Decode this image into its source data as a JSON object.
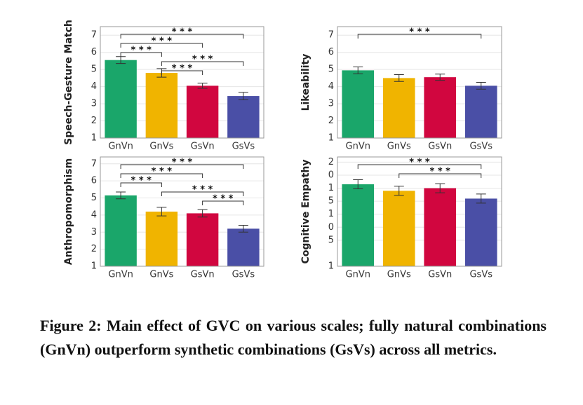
{
  "chart_data": [
    {
      "type": "bar",
      "ylabel": "Speech-Gesture Match",
      "categories": [
        "GnVn",
        "GnVs",
        "GsVn",
        "GsVs"
      ],
      "values": [
        5.55,
        4.8,
        4.05,
        3.45
      ],
      "errors": [
        0.2,
        0.25,
        0.15,
        0.22
      ],
      "colors": [
        "#1aa66a",
        "#f0b400",
        "#d1063f",
        "#4a4fa6"
      ],
      "ylim": [
        1,
        7.5
      ],
      "yticks": [
        1,
        2,
        3,
        4,
        5,
        6,
        7
      ],
      "grid": true,
      "brackets": [
        {
          "from": 0,
          "to": 3,
          "label": "* * *"
        },
        {
          "from": 0,
          "to": 2,
          "label": "* * *"
        },
        {
          "from": 0,
          "to": 1,
          "label": "* * *"
        },
        {
          "from": 1,
          "to": 3,
          "label": "* * *"
        },
        {
          "from": 1,
          "to": 2,
          "label": "* * *"
        }
      ]
    },
    {
      "type": "bar",
      "ylabel": "Likeability",
      "categories": [
        "GnVn",
        "GnVs",
        "GsVn",
        "GsVs"
      ],
      "values": [
        4.95,
        4.5,
        4.55,
        4.05
      ],
      "errors": [
        0.2,
        0.2,
        0.18,
        0.2
      ],
      "colors": [
        "#1aa66a",
        "#f0b400",
        "#d1063f",
        "#4a4fa6"
      ],
      "ylim": [
        1,
        7.5
      ],
      "yticks": [
        1,
        2,
        3,
        4,
        5,
        6,
        7
      ],
      "grid": true,
      "brackets": [
        {
          "from": 0,
          "to": 3,
          "label": "* * *"
        }
      ]
    },
    {
      "type": "bar",
      "ylabel": "Anthropomorphism",
      "categories": [
        "GnVn",
        "GnVs",
        "GsVn",
        "GsVs"
      ],
      "values": [
        5.15,
        4.2,
        4.1,
        3.2
      ],
      "errors": [
        0.2,
        0.25,
        0.22,
        0.2
      ],
      "colors": [
        "#1aa66a",
        "#f0b400",
        "#d1063f",
        "#4a4fa6"
      ],
      "ylim": [
        1,
        7.4
      ],
      "yticks": [
        1,
        2,
        3,
        4,
        5,
        6,
        7
      ],
      "grid": true,
      "brackets": [
        {
          "from": 0,
          "to": 3,
          "label": "* * *"
        },
        {
          "from": 0,
          "to": 2,
          "label": "* * *"
        },
        {
          "from": 0,
          "to": 1,
          "label": "* * *"
        },
        {
          "from": 1,
          "to": 3,
          "label": "* * *"
        },
        {
          "from": 2,
          "to": 3,
          "label": "* * *"
        }
      ]
    },
    {
      "type": "bar",
      "ylabel": "Cognitive Empathy",
      "categories": [
        "GnVn",
        "GnVs",
        "GsVn",
        "GsVs"
      ],
      "values": [
        7.3,
        6.8,
        7.0,
        6.2
      ],
      "errors": [
        0.35,
        0.35,
        0.35,
        0.35
      ],
      "colors": [
        "#1aa66a",
        "#f0b400",
        "#d1063f",
        "#4a4fa6"
      ],
      "ylim": [
        1,
        9.4
      ],
      "yticks": [
        1,
        {
          "value": 3,
          "label": "5"
        },
        {
          "value": 4,
          "label": "0"
        },
        {
          "value": 5,
          "label": "1"
        },
        {
          "value": 6,
          "label": "5"
        },
        {
          "value": 7,
          "label": "1"
        },
        {
          "value": 8,
          "label": "0"
        },
        {
          "value": 9,
          "label": "2"
        }
      ],
      "grid": true,
      "brackets": [
        {
          "from": 0,
          "to": 3,
          "label": "* * *"
        },
        {
          "from": 1,
          "to": 3,
          "label": "* * *"
        }
      ]
    }
  ],
  "caption": "Figure 2: Main effect of GVC on various scales; fully natural combinations (GnVn) outperform synthetic combinations (GsVs) across all metrics."
}
